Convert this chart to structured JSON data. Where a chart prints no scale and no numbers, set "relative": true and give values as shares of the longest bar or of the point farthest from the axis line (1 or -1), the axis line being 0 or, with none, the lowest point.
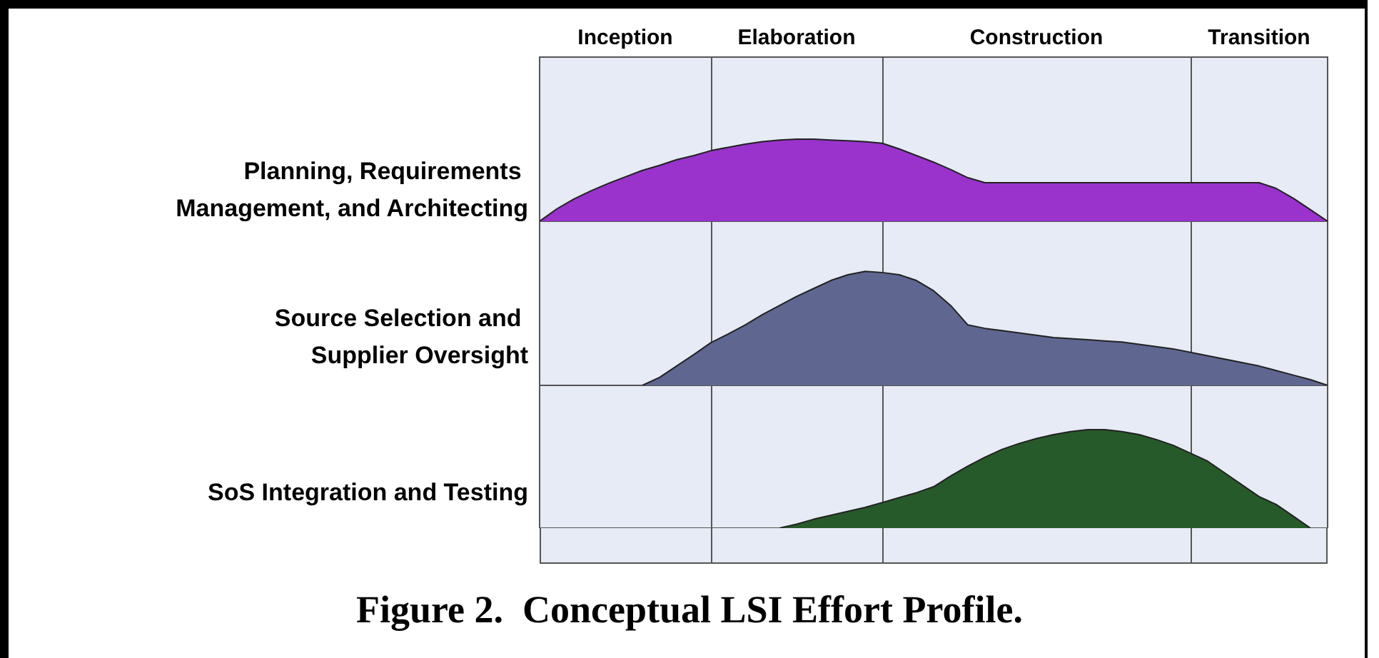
{
  "chart_data": [
    {
      "type": "area",
      "relative": true,
      "tick_labels": "x",
      "grid": "x",
      "categories": [
        null,
        null,
        null,
        null,
        null,
        "Inception",
        null,
        null,
        null,
        null,
        null,
        null,
        null,
        null,
        null,
        "Elaboration",
        null,
        null,
        null,
        null,
        null,
        null,
        null,
        null,
        null,
        null,
        null,
        null,
        null,
        "Construction",
        null,
        null,
        null,
        null,
        null,
        null,
        null,
        null,
        null,
        null,
        null,
        null,
        "Transition",
        null,
        null,
        null,
        null
      ],
      "series": [
        {
          "name": "Planning, Requirements Management, and Architecting",
          "color": "#9933cc",
          "values": [
            0,
            0.15,
            0.27,
            0.37,
            0.46,
            0.54,
            0.62,
            0.68,
            0.75,
            0.8,
            0.86,
            0.9,
            0.94,
            0.97,
            0.99,
            1,
            1,
            0.99,
            0.98,
            0.97,
            0.95,
            0.88,
            0.8,
            0.72,
            0.63,
            0.53,
            0.47,
            0.47,
            0.47,
            0.47,
            0.47,
            0.47,
            0.47,
            0.47,
            0.47,
            0.47,
            0.47,
            0.47,
            0.47,
            0.47,
            0.47,
            0.47,
            0.47,
            0.4,
            0.28,
            0.14,
            0
          ]
        }
      ]
    },
    {
      "type": "area",
      "relative": true,
      "tick_labels": false,
      "grid": "x",
      "categories": [
        null,
        null,
        null,
        null,
        null,
        null,
        null,
        null,
        null,
        null,
        null,
        null,
        null,
        null,
        null,
        null,
        null,
        null,
        null,
        null,
        null,
        null,
        null,
        null,
        null,
        null,
        null,
        null,
        null,
        null,
        null,
        null,
        null,
        null,
        null,
        null,
        null,
        null,
        null,
        null,
        null,
        null,
        null,
        null,
        null,
        null,
        null
      ],
      "series": [
        {
          "name": "Source Selection and Supplier Oversight",
          "color": "#5f6690",
          "values": [
            null,
            null,
            null,
            null,
            null,
            null,
            0,
            0.07,
            0.17,
            0.27,
            0.375,
            0.45,
            0.53,
            0.62,
            0.7,
            0.78,
            0.85,
            0.92,
            0.97,
            1,
            0.99,
            0.97,
            0.92,
            0.83,
            0.7,
            0.53,
            0.5,
            0.48,
            0.46,
            0.44,
            0.42,
            0.41,
            0.4,
            0.39,
            0.38,
            0.36,
            0.34,
            0.32,
            0.29,
            0.26,
            0.23,
            0.2,
            0.17,
            0.13,
            0.09,
            0.05,
            0
          ]
        }
      ]
    },
    {
      "type": "area",
      "relative": true,
      "tick_labels": false,
      "grid": "x",
      "categories": [
        null,
        null,
        null,
        null,
        null,
        null,
        null,
        null,
        null,
        null,
        null,
        null,
        null,
        null,
        null,
        null,
        null,
        null,
        null,
        null,
        null,
        null,
        null,
        null,
        null,
        null,
        null,
        null,
        null,
        null,
        null,
        null,
        null,
        null,
        null,
        null,
        null,
        null,
        null,
        null,
        null,
        null,
        null,
        null,
        null,
        null,
        null
      ],
      "annotations": [
        "Figure 2.  Conceptual LSI Effort Profile."
      ],
      "series": [
        {
          "name": "SoS Integration and Testing",
          "color": "#275a2a",
          "values": [
            null,
            null,
            null,
            null,
            null,
            null,
            null,
            null,
            null,
            null,
            null,
            null,
            null,
            null,
            0,
            0.04,
            0.09,
            0.13,
            0.17,
            0.21,
            0.26,
            0.31,
            0.36,
            0.42,
            0.53,
            0.63,
            0.72,
            0.8,
            0.86,
            0.91,
            0.95,
            0.98,
            1,
            1,
            0.98,
            0.95,
            0.9,
            0.84,
            0.76,
            0.68,
            0.56,
            0.44,
            0.32,
            0.24,
            0.12,
            0,
            null
          ]
        }
      ]
    }
  ]
}
